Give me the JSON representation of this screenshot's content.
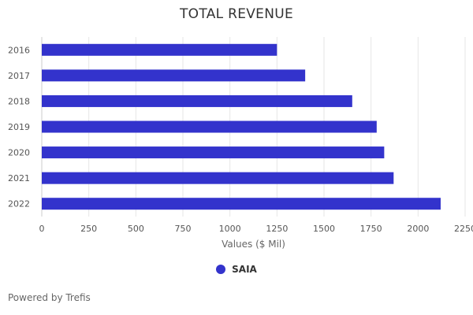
{
  "colors": {
    "bar": "#3333cc",
    "grid": "#e6e6e6",
    "axis": "#cccccc"
  },
  "chart_data": {
    "type": "bar",
    "orientation": "horizontal",
    "title": "TOTAL REVENUE",
    "categories": [
      "2016",
      "2017",
      "2018",
      "2019",
      "2020",
      "2021",
      "2022"
    ],
    "series": [
      {
        "name": "SAIA",
        "values": [
          1250,
          1400,
          1650,
          1780,
          1820,
          1870,
          2120
        ]
      }
    ],
    "xlabel": "Values ($ Mil)",
    "ylabel": "",
    "xlim": [
      0,
      2250
    ],
    "xticks": [
      0,
      250,
      500,
      750,
      1000,
      1250,
      1500,
      1750,
      2000,
      2250
    ],
    "grid": true,
    "legend_position": "bottom-center"
  },
  "footer": {
    "credit": "Powered by Trefis"
  }
}
